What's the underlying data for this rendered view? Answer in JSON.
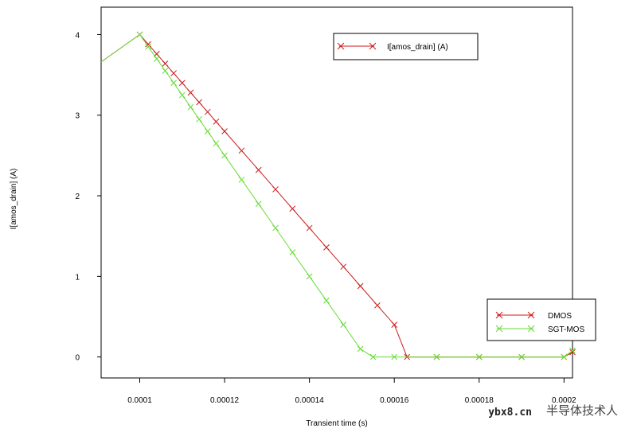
{
  "chart_data": {
    "type": "line",
    "title": "",
    "xlabel": "Transient time (s)",
    "ylabel": "I[amos_drain] (A)",
    "xlim": [
      9.09e-05,
      0.000202
    ],
    "ylim": [
      -0.26,
      4.34
    ],
    "x_ticks": [
      "0.0001",
      "0.00012",
      "0.00014",
      "0.00016",
      "0.00018",
      "0.0002"
    ],
    "y_ticks": [
      "0",
      "1",
      "2",
      "3",
      "4"
    ],
    "legend_top": "I[amos_drain] (A)",
    "series": [
      {
        "name": "DMOS",
        "color": "#cc1a1a",
        "x": [
          9.09e-05,
          0.0001,
          0.000102,
          0.000104,
          0.000106,
          0.000108,
          0.00011,
          0.000112,
          0.000114,
          0.000116,
          0.000118,
          0.00012,
          0.000124,
          0.000128,
          0.000132,
          0.000136,
          0.00014,
          0.000144,
          0.000148,
          0.000152,
          0.000156,
          0.00016,
          0.000163,
          0.00017,
          0.00018,
          0.00019,
          0.0002,
          0.000202
        ],
        "y": [
          3.66,
          4.0,
          3.88,
          3.76,
          3.64,
          3.52,
          3.4,
          3.28,
          3.16,
          3.04,
          2.92,
          2.8,
          2.56,
          2.32,
          2.08,
          1.84,
          1.6,
          1.36,
          1.12,
          0.88,
          0.64,
          0.4,
          0.0,
          0.0,
          0.0,
          0.0,
          0.0,
          0.06
        ]
      },
      {
        "name": "SGT-MOS",
        "color": "#66dd33",
        "x": [
          9.09e-05,
          0.0001,
          0.000102,
          0.000104,
          0.000106,
          0.000108,
          0.00011,
          0.000112,
          0.000114,
          0.000116,
          0.000118,
          0.00012,
          0.000124,
          0.000128,
          0.000132,
          0.000136,
          0.00014,
          0.000144,
          0.000148,
          0.000152,
          0.000155,
          0.00016,
          0.00017,
          0.00018,
          0.00019,
          0.0002,
          0.000202
        ],
        "y": [
          3.66,
          4.0,
          3.85,
          3.7,
          3.55,
          3.4,
          3.25,
          3.1,
          2.95,
          2.8,
          2.65,
          2.5,
          2.2,
          1.9,
          1.6,
          1.3,
          1.0,
          0.7,
          0.4,
          0.1,
          0.0,
          0.0,
          0.0,
          0.0,
          0.0,
          0.0,
          0.08
        ]
      }
    ],
    "grid": false,
    "legend_position": "bottom-right"
  },
  "watermark": {
    "site": "ybx8.cn",
    "text": "半导体技术人"
  }
}
